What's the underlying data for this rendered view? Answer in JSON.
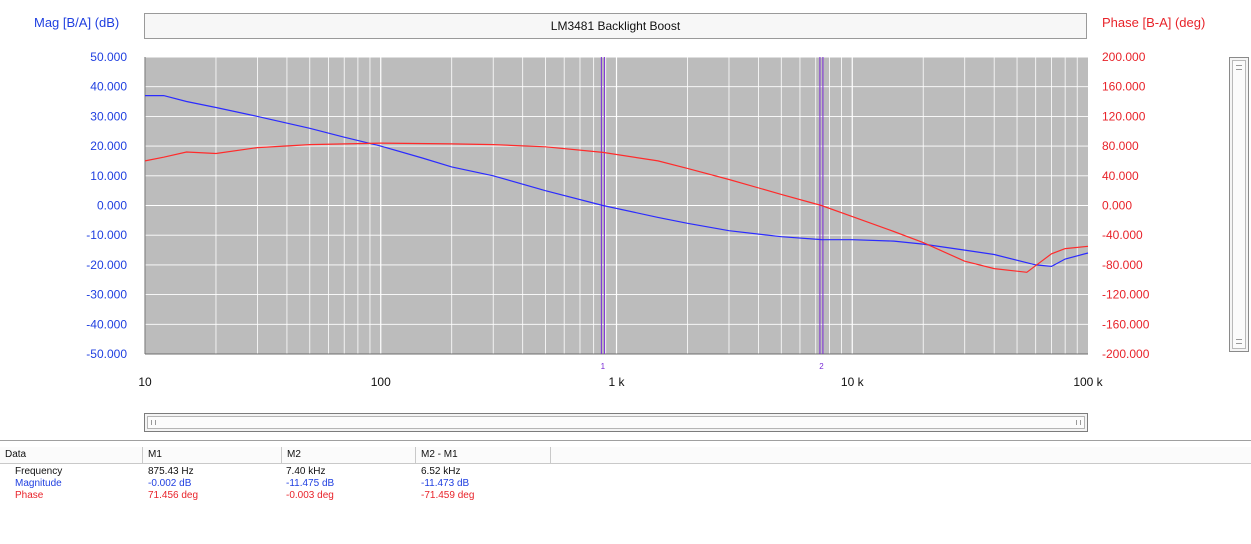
{
  "chart_data": {
    "type": "line",
    "title": "LM3481 Backlight Boost",
    "ylabel_left": "Mag [B/A] (dB)",
    "ylabel_right": "Phase [B-A] (deg)",
    "x_scale": "log",
    "xlim": [
      10,
      100000
    ],
    "ylim_left": [
      -50,
      50
    ],
    "ylim_right": [
      -200,
      200
    ],
    "grid": true,
    "x_tick_values": [
      10,
      100,
      1000,
      10000,
      100000
    ],
    "x_tick_labels": [
      "10",
      "100",
      "1 k",
      "10 k",
      "100 k"
    ],
    "y_left_ticks": [
      "50.000",
      "40.000",
      "30.000",
      "20.000",
      "10.000",
      "0.000",
      "-10.000",
      "-20.000",
      "-30.000",
      "-40.000",
      "-50.000"
    ],
    "y_right_ticks": [
      "200.000",
      "160.000",
      "120.000",
      "80.000",
      "40.000",
      "0.000",
      "-40.000",
      "-80.000",
      "-120.000",
      "-160.000",
      "-200.000"
    ],
    "markers": [
      {
        "label": "1",
        "x": 875.43
      },
      {
        "label": "2",
        "x": 7400
      }
    ],
    "series": [
      {
        "name": "Magnitude",
        "axis": "left",
        "color": "#2b2bff",
        "x": [
          10,
          12,
          15,
          20,
          30,
          50,
          70,
          100,
          150,
          200,
          300,
          500,
          875.43,
          1500,
          2000,
          3000,
          5000,
          7400,
          10000,
          15000,
          20000,
          30000,
          40000,
          60000,
          70000,
          80000,
          100000
        ],
        "y": [
          37,
          37,
          35,
          33,
          30,
          26,
          23,
          20,
          16,
          13,
          10,
          5,
          -0.002,
          -4,
          -6,
          -8.5,
          -10.5,
          -11.475,
          -11.5,
          -12,
          -13,
          -15,
          -16.5,
          -20,
          -20.5,
          -18,
          -16
        ]
      },
      {
        "name": "Phase",
        "axis": "right",
        "color": "#ff2b2b",
        "x": [
          10,
          12,
          15,
          20,
          30,
          50,
          100,
          200,
          300,
          500,
          875.43,
          1500,
          2000,
          3000,
          5000,
          7400,
          10000,
          15000,
          20000,
          30000,
          40000,
          55000,
          70000,
          80000,
          100000
        ],
        "y": [
          60,
          65,
          72,
          70,
          78,
          82,
          84,
          83,
          82,
          79,
          71.456,
          60,
          50,
          35,
          15,
          -0.003,
          -15,
          -35,
          -50,
          -75,
          -85,
          -90,
          -65,
          -58,
          -55
        ]
      }
    ]
  },
  "panel": {
    "headers": [
      "Data",
      "M1",
      "M2",
      "M2 - M1"
    ],
    "rows": [
      {
        "label": "Frequency",
        "color": "black",
        "m1": "875.43 Hz",
        "m2": "7.40 kHz",
        "diff": "6.52 kHz"
      },
      {
        "label": "Magnitude",
        "color": "blue",
        "m1": "-0.002 dB",
        "m2": "-11.475 dB",
        "diff": "-11.473 dB"
      },
      {
        "label": "Phase",
        "color": "red",
        "m1": "71.456 deg",
        "m2": "-0.003 deg",
        "diff": "-71.459 deg"
      }
    ]
  },
  "colors": {
    "plot_bg": "#bcbcbc",
    "grid": "#ffffff",
    "marker": "#7a2bd6",
    "left_axis": "#1f3fe0",
    "right_axis": "#e8232a"
  }
}
